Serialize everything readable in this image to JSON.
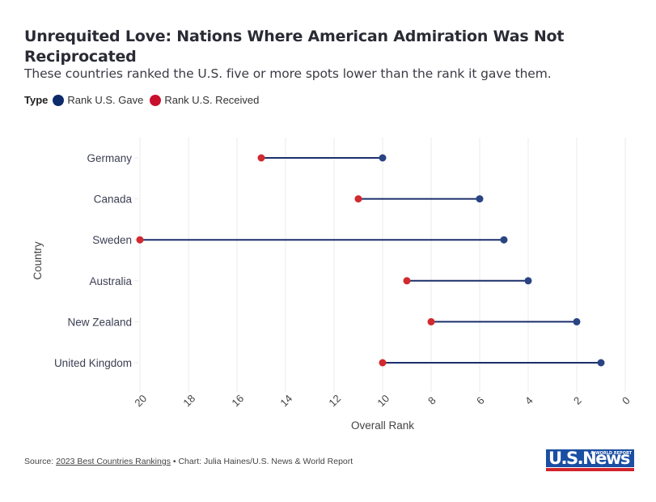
{
  "header": {
    "title": "Unrequited Love: Nations Where American Admiration Was Not Reciprocated",
    "subtitle": "These countries ranked the U.S. five or more spots lower than the rank it gave them."
  },
  "legend": {
    "title": "Type",
    "items": [
      {
        "label": "Rank U.S. Gave",
        "color": "#0d2a6b"
      },
      {
        "label": "Rank U.S. Received",
        "color": "#c8102e"
      }
    ]
  },
  "chart_data": {
    "type": "dumbbell",
    "title": "Unrequited Love: Nations Where American Admiration Was Not Reciprocated",
    "subtitle": "These countries ranked the U.S. five or more spots lower than the rank it gave them.",
    "xlabel": "Overall Rank",
    "ylabel": "Country",
    "xlim": [
      20,
      0
    ],
    "x_reversed": true,
    "xticks": [
      20,
      18,
      16,
      14,
      12,
      10,
      8,
      6,
      4,
      2,
      0
    ],
    "grid": "vertical",
    "legend_position": "top-left",
    "categories": [
      "Germany",
      "Canada",
      "Sweden",
      "Australia",
      "New Zealand",
      "United Kingdom"
    ],
    "series": [
      {
        "name": "Rank U.S. Gave",
        "color": "#2a4483",
        "values": [
          10,
          6,
          5,
          4,
          2,
          1
        ]
      },
      {
        "name": "Rank U.S. Received",
        "color": "#d12a2f",
        "values": [
          15,
          11,
          20,
          9,
          8,
          10
        ]
      }
    ],
    "connector_color": "#1b2f6b"
  },
  "footer": {
    "source_prefix": "Source: ",
    "source_link": "2023 Best Countries Rankings",
    "credit": " • Chart: Julia Haines/U.S. News & World Report"
  },
  "logo": {
    "main": "USNews",
    "small": "& WORLD REPORT"
  }
}
